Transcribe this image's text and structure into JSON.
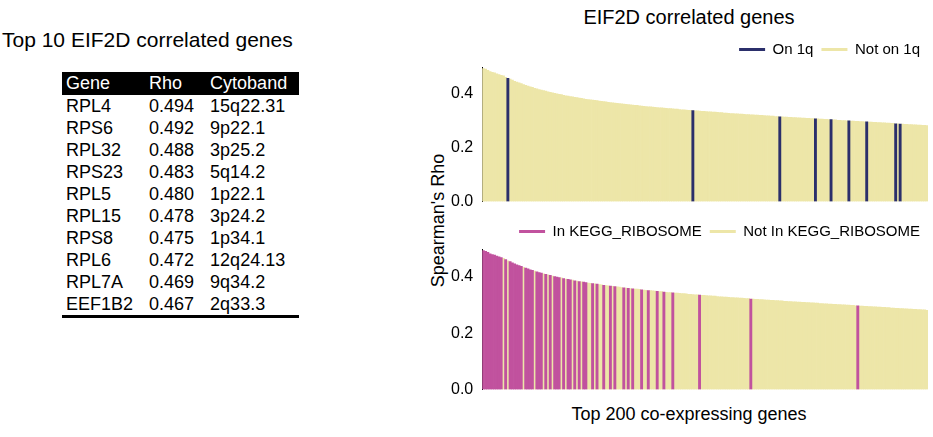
{
  "table": {
    "title": "Top 10 EIF2D correlated genes",
    "columns": [
      "Gene",
      "Rho",
      "Cytoband"
    ],
    "rows": [
      [
        "RPL4",
        "0.494",
        "15q22.31"
      ],
      [
        "RPS6",
        "0.492",
        "9p22.1"
      ],
      [
        "RPL32",
        "0.488",
        "3p25.2"
      ],
      [
        "RPS23",
        "0.483",
        "5q14.2"
      ],
      [
        "RPL5",
        "0.480",
        "1p22.1"
      ],
      [
        "RPL15",
        "0.478",
        "3p24.2"
      ],
      [
        "RPS8",
        "0.475",
        "1p34.1"
      ],
      [
        "RPL6",
        "0.472",
        "12q24.13"
      ],
      [
        "RPL7A",
        "0.469",
        "9q34.2"
      ],
      [
        "EEF1B2",
        "0.467",
        "2q33.3"
      ]
    ]
  },
  "panel_title": "EIF2D correlated genes",
  "ylabel": "Spearman's Rho",
  "xlabel": "Top 200 co-expressing genes",
  "chart_data": [
    {
      "type": "bar",
      "stacked": true,
      "grid": false,
      "legend": "top-right",
      "tick_labels": "y",
      "ylim": [
        0,
        0.5
      ],
      "yticks": [
        {
          "value": 0,
          "label": "0.0"
        },
        0.2,
        0.4
      ],
      "series": [
        {
          "name": "On 1q",
          "color": "#2b2f6b",
          "values": [
            null,
            null,
            null,
            null,
            null,
            null,
            null,
            null,
            null,
            null,
            null,
            0.458,
            null,
            null,
            null,
            null,
            null,
            null,
            null,
            null,
            null,
            null,
            null,
            null,
            null,
            null,
            null,
            null,
            null,
            null,
            null,
            null,
            null,
            null,
            null,
            null,
            null,
            null,
            null,
            null,
            null,
            null,
            null,
            null,
            null,
            null,
            null,
            null,
            null,
            null,
            null,
            null,
            null,
            null,
            null,
            null,
            null,
            null,
            null,
            null,
            null,
            null,
            null,
            null,
            null,
            null,
            null,
            null,
            null,
            null,
            null,
            null,
            null,
            null,
            null,
            null,
            null,
            null,
            null,
            null,
            null,
            null,
            null,
            null,
            null,
            null,
            null,
            null,
            null,
            null,
            null,
            null,
            null,
            null,
            0.338,
            null,
            null,
            null,
            null,
            null,
            null,
            null,
            null,
            null,
            null,
            null,
            null,
            null,
            null,
            null,
            null,
            null,
            null,
            null,
            null,
            null,
            null,
            null,
            null,
            null,
            null,
            null,
            null,
            null,
            null,
            null,
            null,
            null,
            null,
            null,
            null,
            null,
            null,
            0.315,
            null,
            null,
            null,
            null,
            null,
            null,
            null,
            null,
            null,
            null,
            null,
            null,
            null,
            null,
            null,
            0.307,
            null,
            null,
            null,
            null,
            null,
            null,
            0.304,
            null,
            null,
            null,
            null,
            null,
            null,
            null,
            0.3,
            null,
            null,
            null,
            null,
            null,
            null,
            null,
            0.296,
            null,
            null,
            null,
            null,
            null,
            null,
            null,
            null,
            null,
            null,
            null,
            null,
            0.289,
            null,
            0.288,
            null,
            null,
            null,
            null,
            null,
            null,
            null,
            null,
            null,
            null,
            null,
            null
          ]
        },
        {
          "name": "Not on 1q",
          "color": "#ede6a8",
          "values": [
            0.494,
            0.492,
            0.488,
            0.483,
            0.48,
            0.478,
            0.475,
            0.472,
            0.469,
            0.467,
            0.462,
            null,
            0.455,
            0.451,
            0.447,
            0.444,
            0.441,
            0.438,
            0.435,
            0.432,
            0.429,
            0.426,
            0.424,
            0.421,
            0.419,
            0.416,
            0.414,
            0.412,
            0.41,
            0.408,
            0.406,
            0.404,
            0.402,
            0.4,
            0.398,
            0.397,
            0.395,
            0.393,
            0.392,
            0.39,
            0.389,
            0.387,
            0.386,
            0.384,
            0.383,
            0.382,
            0.38,
            0.379,
            0.378,
            0.377,
            0.376,
            0.375,
            0.373,
            0.372,
            0.371,
            0.37,
            0.369,
            0.368,
            0.367,
            0.366,
            0.365,
            0.364,
            0.363,
            0.362,
            0.361,
            0.36,
            0.359,
            0.358,
            0.357,
            0.357,
            0.356,
            0.355,
            0.354,
            0.353,
            0.352,
            0.352,
            0.351,
            0.35,
            0.349,
            0.348,
            0.348,
            0.347,
            0.346,
            0.345,
            0.345,
            0.344,
            0.343,
            0.343,
            0.342,
            0.341,
            0.341,
            0.34,
            0.339,
            0.339,
            null,
            0.337,
            0.337,
            0.336,
            0.335,
            0.335,
            0.334,
            0.333,
            0.333,
            0.332,
            0.332,
            0.331,
            0.33,
            0.33,
            0.329,
            0.329,
            0.328,
            0.327,
            0.327,
            0.326,
            0.326,
            0.325,
            0.325,
            0.324,
            0.323,
            0.323,
            0.322,
            0.322,
            0.321,
            0.321,
            0.32,
            0.32,
            0.319,
            0.318,
            0.318,
            0.317,
            0.317,
            0.316,
            0.316,
            null,
            0.315,
            0.314,
            0.314,
            0.313,
            0.313,
            0.312,
            0.312,
            0.311,
            0.311,
            0.31,
            0.31,
            0.309,
            0.309,
            0.308,
            0.308,
            null,
            0.307,
            0.306,
            0.306,
            0.305,
            0.305,
            0.304,
            null,
            0.303,
            0.303,
            0.302,
            0.302,
            0.301,
            0.301,
            0.3,
            null,
            0.299,
            0.299,
            0.298,
            0.298,
            0.297,
            0.297,
            0.296,
            null,
            0.295,
            0.295,
            0.294,
            0.294,
            0.293,
            0.293,
            0.292,
            0.292,
            0.291,
            0.291,
            0.29,
            0.29,
            null,
            0.289,
            null,
            0.288,
            0.287,
            0.287,
            0.286,
            0.286,
            0.285,
            0.285,
            0.284,
            0.284,
            0.283,
            0.283,
            0.282
          ]
        }
      ]
    },
    {
      "type": "bar",
      "stacked": true,
      "grid": false,
      "legend": "top-right",
      "tick_labels": "y",
      "ylim": [
        0,
        0.5
      ],
      "yticks": [
        {
          "value": 0,
          "label": "0.0"
        },
        0.2,
        0.4
      ],
      "series": [
        {
          "name": "In KEGG_RIBOSOME",
          "color": "#c1529e",
          "values": [
            0.494,
            0.492,
            0.488,
            0.483,
            0.48,
            0.478,
            0.475,
            0.472,
            0.469,
            null,
            0.462,
            null,
            0.455,
            0.451,
            0.447,
            0.444,
            0.441,
            0.438,
            null,
            0.432,
            0.429,
            0.426,
            0.424,
            null,
            0.419,
            0.416,
            0.414,
            null,
            0.41,
            null,
            0.406,
            null,
            0.402,
            0.4,
            0.398,
            null,
            0.395,
            null,
            0.392,
            0.39,
            null,
            0.387,
            null,
            0.384,
            null,
            0.382,
            0.38,
            null,
            null,
            0.377,
            null,
            0.375,
            null,
            null,
            0.371,
            null,
            null,
            0.368,
            null,
            0.366,
            null,
            null,
            null,
            0.362,
            null,
            0.36,
            null,
            0.358,
            null,
            null,
            null,
            0.355,
            null,
            null,
            0.352,
            null,
            null,
            null,
            0.349,
            null,
            null,
            0.347,
            null,
            null,
            null,
            0.344,
            null,
            null,
            null,
            null,
            null,
            null,
            null,
            null,
            null,
            null,
            null,
            0.336,
            null,
            null,
            null,
            null,
            null,
            null,
            null,
            null,
            null,
            null,
            null,
            null,
            null,
            null,
            null,
            null,
            null,
            null,
            null,
            null,
            null,
            null,
            0.322,
            null,
            null,
            null,
            null,
            null,
            null,
            null,
            null,
            null,
            null,
            null,
            null,
            null,
            null,
            null,
            null,
            null,
            null,
            null,
            null,
            null,
            null,
            null,
            null,
            null,
            null,
            null,
            null,
            null,
            null,
            null,
            null,
            null,
            null,
            null,
            null,
            null,
            null,
            null,
            null,
            null,
            null,
            null,
            null,
            null,
            null,
            null,
            0.298,
            null,
            null,
            null,
            null,
            null,
            null,
            null,
            null,
            null,
            null,
            null,
            null,
            null,
            null,
            null,
            null,
            null,
            null,
            null,
            null,
            null,
            null,
            null,
            null,
            null,
            null,
            null,
            null,
            null,
            null,
            null
          ]
        },
        {
          "name": "Not In KEGG_RIBOSOME",
          "color": "#ede6a8",
          "values": [
            null,
            null,
            null,
            null,
            null,
            null,
            null,
            null,
            null,
            0.467,
            null,
            0.458,
            null,
            null,
            null,
            null,
            null,
            null,
            0.435,
            null,
            null,
            null,
            null,
            0.421,
            null,
            null,
            null,
            0.412,
            null,
            0.408,
            null,
            0.404,
            null,
            null,
            null,
            0.397,
            null,
            0.393,
            null,
            null,
            0.389,
            null,
            0.386,
            null,
            0.383,
            null,
            null,
            0.379,
            0.378,
            null,
            0.376,
            null,
            0.373,
            0.372,
            null,
            0.37,
            0.369,
            null,
            0.367,
            null,
            0.365,
            0.364,
            0.363,
            null,
            0.361,
            null,
            0.359,
            null,
            0.357,
            0.357,
            0.356,
            null,
            0.354,
            0.353,
            null,
            0.352,
            0.351,
            0.35,
            null,
            0.348,
            0.348,
            null,
            0.346,
            0.345,
            0.345,
            null,
            0.343,
            0.343,
            0.342,
            0.341,
            0.341,
            0.34,
            0.339,
            0.339,
            0.338,
            0.337,
            0.337,
            null,
            0.335,
            0.335,
            0.334,
            0.333,
            0.333,
            0.332,
            0.332,
            0.331,
            0.33,
            0.33,
            0.329,
            0.329,
            0.328,
            0.327,
            0.327,
            0.326,
            0.326,
            0.325,
            0.325,
            0.324,
            0.323,
            0.323,
            null,
            0.322,
            0.321,
            0.321,
            0.32,
            0.32,
            0.319,
            0.318,
            0.318,
            0.317,
            0.317,
            0.316,
            0.316,
            0.315,
            0.315,
            0.314,
            0.314,
            0.313,
            0.313,
            0.312,
            0.312,
            0.311,
            0.311,
            0.31,
            0.31,
            0.309,
            0.309,
            0.308,
            0.308,
            0.307,
            0.307,
            0.306,
            0.306,
            0.305,
            0.305,
            0.304,
            0.304,
            0.303,
            0.303,
            0.302,
            0.302,
            0.301,
            0.301,
            0.3,
            0.3,
            0.299,
            0.299,
            0.298,
            null,
            0.297,
            0.297,
            0.296,
            0.296,
            0.295,
            0.295,
            0.294,
            0.294,
            0.293,
            0.293,
            0.292,
            0.292,
            0.291,
            0.291,
            0.29,
            0.29,
            0.289,
            0.289,
            0.288,
            0.288,
            0.287,
            0.287,
            0.286,
            0.286,
            0.285,
            0.285,
            0.284,
            0.284,
            0.283,
            0.283,
            0.282
          ]
        }
      ]
    }
  ]
}
